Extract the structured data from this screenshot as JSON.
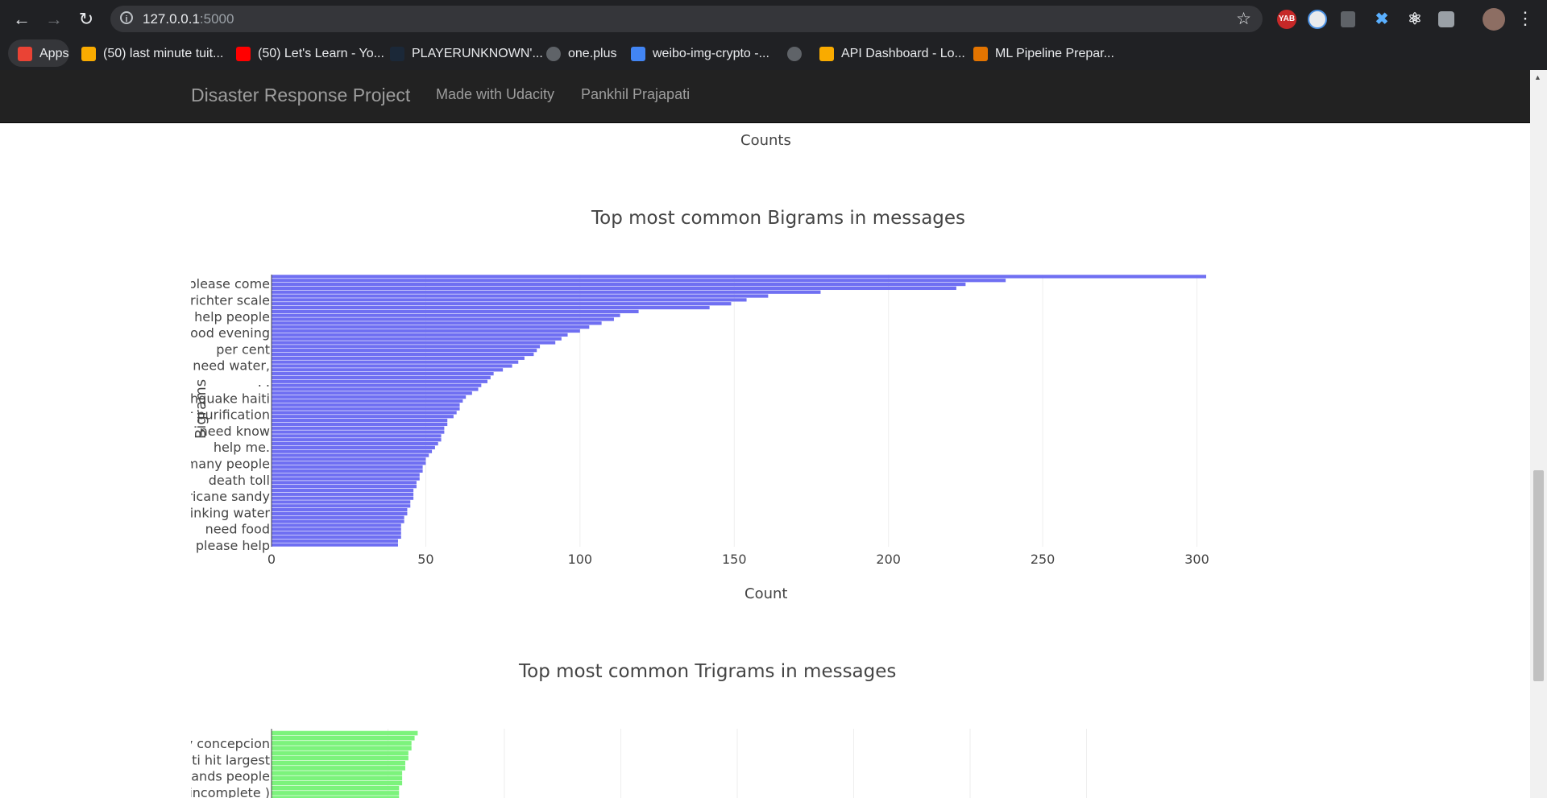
{
  "browser": {
    "url_host": "127.0.0.1",
    "url_port": ":5000",
    "extensions": [
      "YAB"
    ],
    "bookmarks": [
      {
        "label": "Apps",
        "color": "#ea4335"
      },
      {
        "label": "(50) last minute tuit...",
        "color": "#f9ab00"
      },
      {
        "label": "(50) Let's Learn - Yo...",
        "color": "#ff0000"
      },
      {
        "label": "PLAYERUNKNOWN'...",
        "color": "#1b2838"
      },
      {
        "label": "one.plus",
        "color": "#5f6368"
      },
      {
        "label": "weibo-img-crypto -...",
        "color": "#4285f4"
      },
      {
        "label": "",
        "color": "#5f6368"
      },
      {
        "label": "API Dashboard - Lo...",
        "color": "#f9ab00"
      },
      {
        "label": "ML Pipeline Prepar...",
        "color": "#e37400"
      }
    ]
  },
  "navbar": {
    "brand": "Disaster Response Project",
    "links": [
      "Made with Udacity",
      "Pankhil Prajapati"
    ]
  },
  "prev_chart": {
    "xlabel": "Counts"
  },
  "chart_data": [
    {
      "type": "bar",
      "orientation": "horizontal",
      "title": "Top most common Bigrams in messages",
      "xlabel": "Count",
      "ylabel": "Bigrams",
      "xlim": [
        0,
        303
      ],
      "xticks": [
        0,
        50,
        100,
        150,
        200,
        250,
        300
      ],
      "color": "#6f6ff2",
      "visible_tick_labels": [
        "please come",
        "richter scale",
        "help people",
        "good evening",
        "per cent",
        "need water,",
        ". .",
        "earthquake haiti",
        "water purification",
        "need know",
        "help me.",
        "many people",
        "death toll",
        "hurricane sandy",
        "drinking water",
        "need food",
        "please help"
      ],
      "values": [
        41,
        41,
        42,
        42,
        42,
        42,
        43,
        43,
        44,
        44,
        45,
        45,
        46,
        46,
        46,
        47,
        47,
        48,
        48,
        49,
        49,
        50,
        50,
        51,
        52,
        53,
        54,
        55,
        55,
        56,
        56,
        57,
        57,
        59,
        60,
        61,
        61,
        62,
        63,
        65,
        67,
        68,
        70,
        71,
        72,
        75,
        78,
        80,
        82,
        85,
        86,
        87,
        92,
        94,
        96,
        100,
        103,
        107,
        111,
        113,
        119,
        142,
        149,
        154,
        161,
        178,
        222,
        225,
        238,
        303
      ]
    },
    {
      "type": "bar",
      "orientation": "horizontal",
      "title": "Top most common Trigrams in messages",
      "color": "#7cf37c",
      "xticks_count": 8,
      "visible_tick_labels": [
        "city concepcion",
        "haiti hit largest",
        "thousands people",
        "incomplete )"
      ],
      "values": [
        41,
        41,
        41,
        42,
        42,
        42,
        43,
        43,
        44,
        44,
        45,
        45,
        46,
        47,
        48,
        49
      ]
    }
  ]
}
